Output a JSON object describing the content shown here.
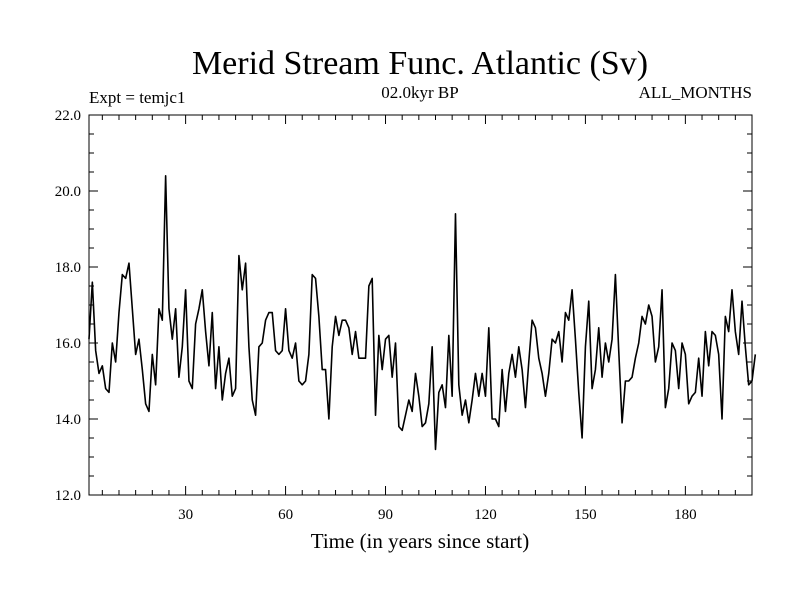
{
  "chart_data": {
    "type": "line",
    "title": "Merid Stream Func. Atlantic (Sv)",
    "left_label": "Expt = temjc1",
    "center_label": "02.0kyr BP",
    "right_label": "ALL_MONTHS",
    "xlabel": "Time (in years since start)",
    "ylabel": "",
    "xlim": [
      1,
      200
    ],
    "ylim": [
      12.0,
      22.0
    ],
    "xticks": [
      30,
      60,
      90,
      120,
      150,
      180
    ],
    "xtick_labels": [
      "30",
      "60",
      "90",
      "120",
      "150",
      "180"
    ],
    "yticks": [
      12.0,
      14.0,
      16.0,
      18.0,
      20.0,
      22.0
    ],
    "ytick_labels": [
      "12.0",
      "14.0",
      "16.0",
      "18.0",
      "20.0",
      "22.0"
    ],
    "color": "#000000",
    "series": [
      {
        "name": "Merid Stream Func. Atlantic",
        "x_start": 1,
        "x_step": 1,
        "values": [
          16.1,
          17.6,
          15.8,
          15.2,
          15.4,
          14.8,
          14.7,
          16.0,
          15.5,
          16.8,
          17.8,
          17.7,
          18.1,
          16.9,
          15.7,
          16.1,
          15.3,
          14.4,
          14.2,
          15.7,
          14.9,
          16.9,
          16.6,
          20.4,
          16.9,
          16.1,
          16.9,
          15.1,
          15.9,
          17.4,
          15.0,
          14.8,
          16.5,
          16.9,
          17.4,
          16.3,
          15.4,
          16.8,
          14.8,
          15.9,
          14.5,
          15.2,
          15.6,
          14.6,
          14.8,
          18.3,
          17.4,
          18.1,
          15.9,
          14.5,
          14.1,
          15.9,
          16.0,
          16.6,
          16.8,
          16.8,
          15.8,
          15.7,
          15.8,
          16.9,
          15.8,
          15.6,
          16.0,
          15.0,
          14.9,
          15.0,
          15.7,
          17.8,
          17.7,
          16.7,
          15.3,
          15.3,
          14.0,
          15.9,
          16.7,
          16.2,
          16.6,
          16.6,
          16.4,
          15.7,
          16.3,
          15.6,
          15.6,
          15.6,
          17.5,
          17.7,
          14.1,
          16.2,
          15.3,
          16.1,
          16.2,
          15.1,
          16.0,
          13.8,
          13.7,
          14.1,
          14.5,
          14.2,
          15.2,
          14.6,
          13.8,
          13.9,
          14.4,
          15.9,
          13.2,
          14.7,
          14.9,
          14.3,
          16.2,
          14.6,
          19.4,
          14.9,
          14.1,
          14.5,
          13.9,
          14.5,
          15.2,
          14.6,
          15.2,
          14.6,
          16.4,
          14.0,
          14.0,
          13.8,
          15.3,
          14.2,
          15.2,
          15.7,
          15.1,
          15.9,
          15.3,
          14.3,
          15.5,
          16.6,
          16.4,
          15.6,
          15.2,
          14.6,
          15.2,
          16.1,
          16.0,
          16.3,
          15.5,
          16.8,
          16.6,
          17.4,
          16.1,
          14.7,
          13.5,
          15.9,
          17.1,
          14.8,
          15.3,
          16.4,
          15.1,
          16.0,
          15.5,
          16.1,
          17.8,
          15.8,
          13.9,
          15.0,
          15.0,
          15.1,
          15.6,
          16.0,
          16.7,
          16.5,
          17.0,
          16.7,
          15.5,
          15.9,
          17.4,
          14.3,
          14.8,
          16.0,
          15.8,
          14.8,
          16.0,
          15.7,
          14.4,
          14.6,
          14.7,
          15.6,
          14.6,
          16.3,
          15.4,
          16.3,
          16.2,
          15.7,
          14.0,
          16.7,
          16.3,
          17.4,
          16.3,
          15.7,
          17.1,
          15.9,
          14.9,
          15.0,
          15.7
        ]
      }
    ]
  }
}
